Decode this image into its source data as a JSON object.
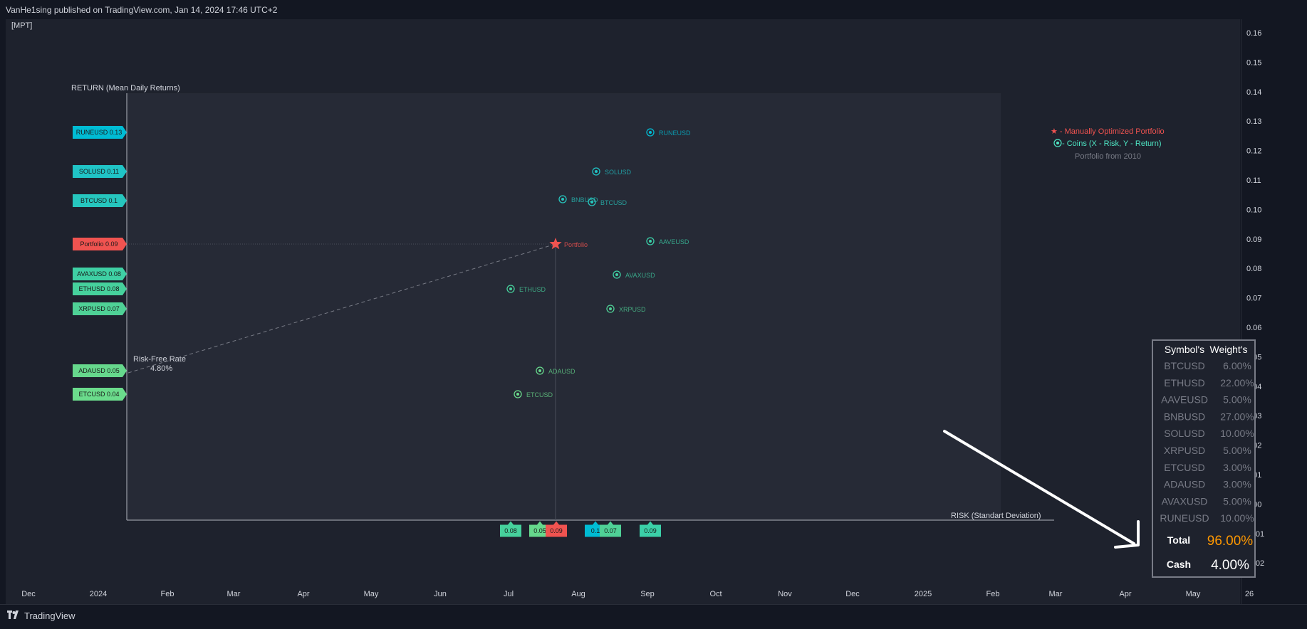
{
  "header": {
    "published": "VanHe1sing published on TradingView.com, Jan 14, 2024 17:46 UTC+2"
  },
  "indicator": {
    "name": "[MPT]"
  },
  "footer": {
    "brand": "TradingView"
  },
  "time_axis": [
    "Dec",
    "2024",
    "Feb",
    "Mar",
    "Apr",
    "May",
    "Jun",
    "Jul",
    "Aug",
    "Sep",
    "Oct",
    "Nov",
    "Dec",
    "2025",
    "Feb",
    "Mar",
    "Apr",
    "May",
    "26"
  ],
  "price_axis": [
    "0.16",
    "0.15",
    "0.14",
    "0.13",
    "0.12",
    "0.11",
    "0.10",
    "0.09",
    "0.08",
    "0.07",
    "0.06",
    "0.05",
    "0.04",
    "0.03",
    "0.02",
    "0.01",
    "0.00",
    "-0.01",
    "-0.02"
  ],
  "legend": {
    "portfolio": "★ - Manually Optimized Portfolio",
    "coins": " - Coins (X - Risk, Y - Return)",
    "since": "Portfolio from 2010"
  },
  "colors": {
    "portfolio": "#f05350",
    "coins_legend": "#4ee6c4",
    "teal": "#2fbfb8",
    "cyan": "#00bcd4",
    "green": "#5cc98a",
    "light_green": "#6bdc8c"
  },
  "chart_data": {
    "type": "scatter",
    "xlabel": "RISK (Standart Deviation)",
    "ylabel": "RETURN (Mean Daily Returns)",
    "risk_free": {
      "label": "Risk-Free Rate",
      "value": "4.80%"
    },
    "points": [
      {
        "name": "RUNEUSD",
        "tag": "RUNEUSD 0.13",
        "color": "#00bcd4"
      },
      {
        "name": "SOLUSD",
        "tag": "SOLUSD 0.11",
        "color": "#20c4c6"
      },
      {
        "name": "BTCUSD",
        "tag": "BTCUSD 0.1",
        "color": "#26c6be"
      },
      {
        "name": "BNBUSD",
        "tag": "",
        "color": "#26c6be"
      },
      {
        "name": "AAVEUSD",
        "tag": "",
        "color": "#3bd0a8"
      },
      {
        "name": "AVAXUSD",
        "tag": "AVAXUSD 0.08",
        "color": "#3fd0a4"
      },
      {
        "name": "ETHUSD",
        "tag": "ETHUSD 0.08",
        "color": "#46d19c"
      },
      {
        "name": "XRPUSD",
        "tag": "XRPUSD 0.07",
        "color": "#4fd196"
      },
      {
        "name": "ADAUSD",
        "tag": "ADAUSD 0.05",
        "color": "#66d88c"
      },
      {
        "name": "ETCUSD",
        "tag": "ETCUSD 0.04",
        "color": "#6bdc8c"
      }
    ],
    "portfolio": {
      "name": "Portfolio",
      "tag": "Portfolio 0.09",
      "color": "#f05350"
    },
    "x_tags": [
      {
        "label": "0.08",
        "color": "#46d19c"
      },
      {
        "label": "0.05",
        "color": "#66d88c"
      },
      {
        "label": "0.09",
        "color": "#f05350"
      },
      {
        "label": "0.1",
        "color": "#00bcd4"
      },
      {
        "label": "0.07",
        "color": "#4fd196"
      },
      {
        "label": "0.09",
        "color": "#3bd0a8"
      }
    ]
  },
  "weights_table": {
    "headers": [
      "Symbol's",
      "Weight's"
    ],
    "rows": [
      [
        "BTCUSD",
        "6.00%"
      ],
      [
        "ETHUSD",
        "22.00%"
      ],
      [
        "AAVEUSD",
        "5.00%"
      ],
      [
        "BNBUSD",
        "27.00%"
      ],
      [
        "SOLUSD",
        "10.00%"
      ],
      [
        "XRPUSD",
        "5.00%"
      ],
      [
        "ETCUSD",
        "3.00%"
      ],
      [
        "ADAUSD",
        "3.00%"
      ],
      [
        "AVAXUSD",
        "5.00%"
      ],
      [
        "RUNEUSD",
        "10.00%"
      ]
    ],
    "total_label": "Total",
    "total_value": "96.00%",
    "cash_label": "Cash",
    "cash_value": "4.00%"
  }
}
